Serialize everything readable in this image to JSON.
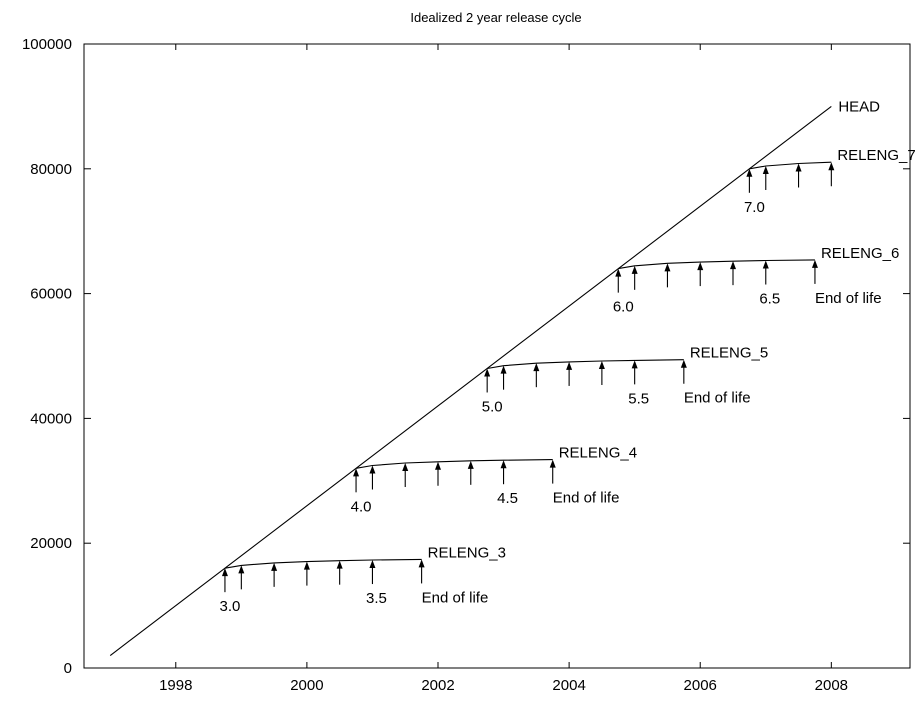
{
  "chart_data": {
    "type": "line",
    "title": "Idealized 2 year release cycle",
    "xlabel": "",
    "ylabel": "",
    "xlim": [
      1996.6,
      2009.2
    ],
    "ylim": [
      0,
      100000
    ],
    "x_ticks": [
      1998,
      2000,
      2002,
      2004,
      2006,
      2008
    ],
    "y_ticks": [
      0,
      20000,
      40000,
      60000,
      80000,
      100000
    ],
    "grid": false,
    "head": {
      "name": "HEAD",
      "x": [
        1997,
        2008
      ],
      "y": [
        2000,
        90000
      ]
    },
    "branches": [
      {
        "name": "RELENG_3",
        "x": [
          1998.75,
          1999.0,
          1999.5,
          2000.0,
          2000.5,
          2001.0,
          2001.75
        ],
        "y": [
          16000,
          16450,
          16850,
          17050,
          17200,
          17300,
          17400
        ],
        "major_label": "3.0",
        "major_x": 1998.75,
        "minor_label": "3.5",
        "minor_x": 2001.0,
        "eol_label": "End of life",
        "eol_x": 2001.75
      },
      {
        "name": "RELENG_4",
        "x": [
          2000.75,
          2001.0,
          2001.5,
          2002.0,
          2002.5,
          2003.0,
          2003.75
        ],
        "y": [
          32000,
          32450,
          32850,
          33050,
          33200,
          33300,
          33400
        ],
        "major_label": "4.0",
        "major_x": 2000.75,
        "minor_label": "4.5",
        "minor_x": 2003.0,
        "eol_label": "End of life",
        "eol_x": 2003.75
      },
      {
        "name": "RELENG_5",
        "x": [
          2002.75,
          2003.0,
          2003.5,
          2004.0,
          2004.5,
          2005.0,
          2005.75
        ],
        "y": [
          48000,
          48450,
          48850,
          49050,
          49200,
          49300,
          49400
        ],
        "major_label": "5.0",
        "major_x": 2002.75,
        "minor_label": "5.5",
        "minor_x": 2005.0,
        "eol_label": "End of life",
        "eol_x": 2005.75
      },
      {
        "name": "RELENG_6",
        "x": [
          2004.75,
          2005.0,
          2005.5,
          2006.0,
          2006.5,
          2007.0,
          2007.75
        ],
        "y": [
          64000,
          64450,
          64850,
          65050,
          65200,
          65300,
          65400
        ],
        "major_label": "6.0",
        "major_x": 2004.75,
        "minor_label": "6.5",
        "minor_x": 2007.0,
        "eol_label": "End of life",
        "eol_x": 2007.75
      },
      {
        "name": "RELENG_7",
        "x": [
          2006.75,
          2007.0,
          2007.5,
          2008.0
        ],
        "y": [
          80000,
          80450,
          80850,
          81050
        ],
        "major_label": "7.0",
        "major_x": 2006.75,
        "minor_label": "",
        "minor_x": null,
        "eol_label": "",
        "eol_x": null
      }
    ]
  }
}
